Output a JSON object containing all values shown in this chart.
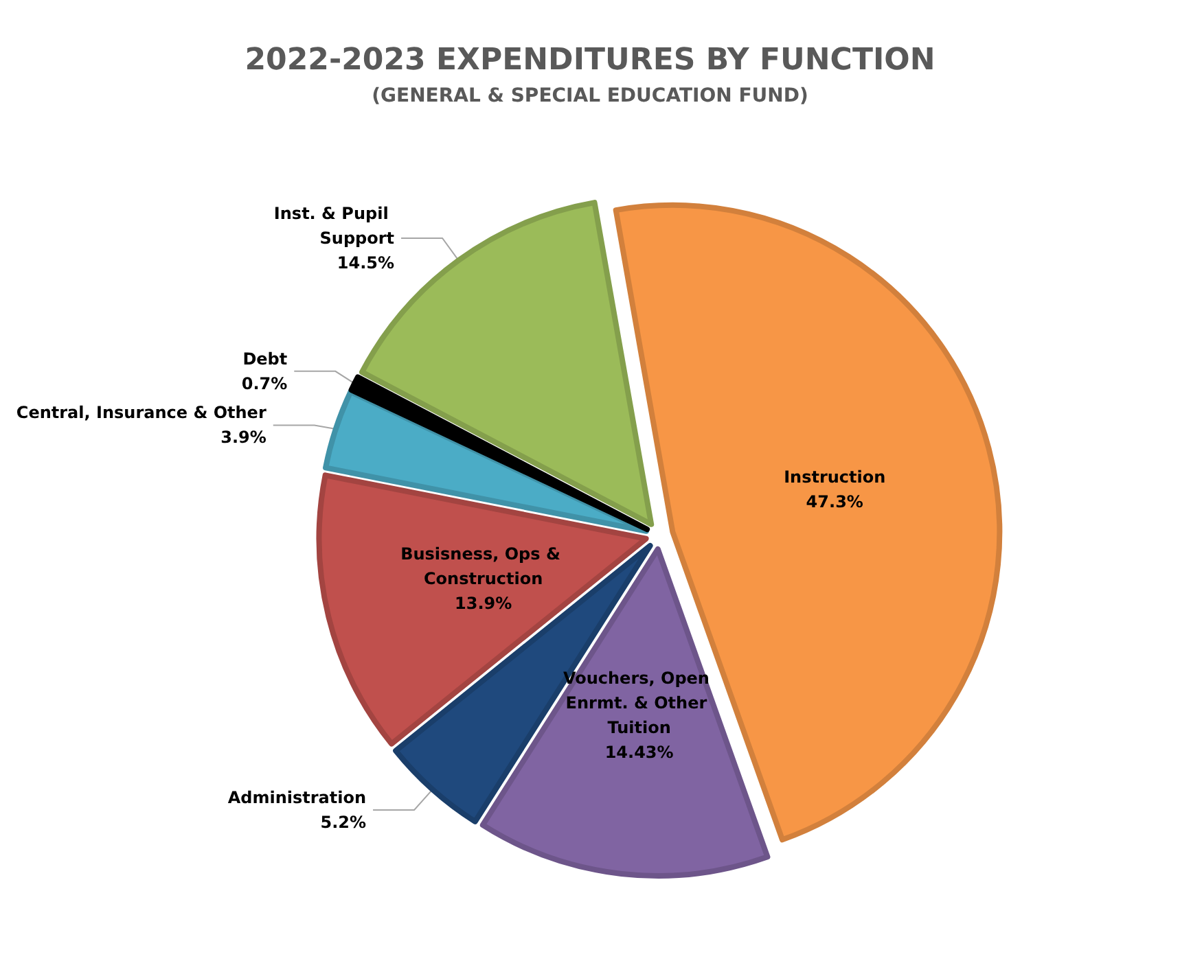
{
  "chart_data": {
    "type": "pie",
    "title": "2022-2023 EXPENDITURES BY FUNCTION",
    "subtitle": "(GENERAL & SPECIAL EDUCATION FUND)",
    "categories": [
      "Instruction",
      "Vouchers, Open Enrmt. & Other Tuition",
      "Administration",
      "Busisness, Ops & Construction",
      "Central, Insurance & Other",
      "Debt",
      "Inst. & Pupil Support"
    ],
    "values": [
      47.3,
      14.43,
      5.2,
      13.9,
      3.9,
      0.7,
      14.5
    ],
    "colors": [
      "#f79646",
      "#8064a2",
      "#1f497d",
      "#c0504d",
      "#4bacc6",
      "#000000",
      "#9bbb59"
    ],
    "value_labels": [
      "47.3%",
      "14.43%",
      "5.2%",
      "13.9%",
      "3.9%",
      "0.7%",
      "14.5%"
    ],
    "legend": false
  }
}
